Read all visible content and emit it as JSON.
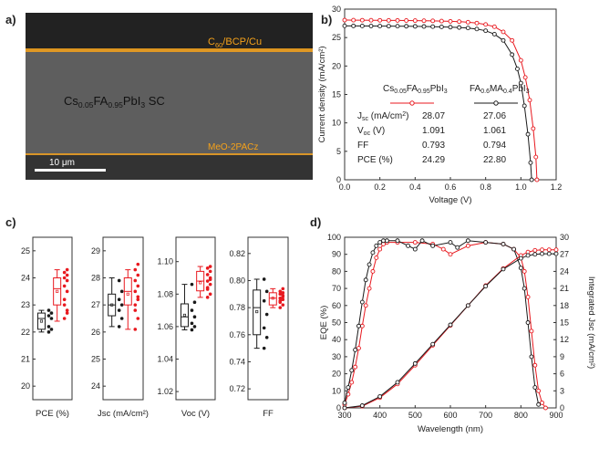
{
  "colors": {
    "red": "#e8191f",
    "black": "#1a1a1a",
    "orange": "#f6a21a",
    "sem_bg": "#5e5e5e",
    "sem_top": "#222222"
  },
  "panels": {
    "a": {
      "label": "a)",
      "top_layer": "C60/BCP/Cu",
      "top_layer_main": "C",
      "top_layer_sub": "60",
      "top_layer_rest": "/BCP/Cu",
      "film_main": "Cs",
      "film_sub1": "0.05",
      "film_mid": "FA",
      "film_sub2": "0.95",
      "film_rest": "PbI",
      "film_sub3": "3",
      "film_tail": " SC",
      "bottom_layer": "MeO-2PACz",
      "scale_bar": "10 μm"
    },
    "b": {
      "label": "b)"
    },
    "c": {
      "label": "c)"
    },
    "d": {
      "label": "d)"
    }
  },
  "chart_data": [
    {
      "id": "b",
      "type": "line",
      "xlabel": "Voltage (V)",
      "ylabel": "Current density (mA/cm²)",
      "xlim": [
        0.0,
        1.2
      ],
      "ylim": [
        0,
        30
      ],
      "xticks": [
        "0.0",
        "0.2",
        "0.4",
        "0.6",
        "0.8",
        "1.0",
        "1.2"
      ],
      "yticks": [
        "0",
        "5",
        "10",
        "15",
        "20",
        "25",
        "30"
      ],
      "series": [
        {
          "name": "Cs0.05FA0.95PbI3",
          "color": "#e8191f",
          "x": [
            0.0,
            0.05,
            0.1,
            0.15,
            0.2,
            0.25,
            0.3,
            0.35,
            0.4,
            0.45,
            0.5,
            0.55,
            0.6,
            0.65,
            0.7,
            0.75,
            0.8,
            0.85,
            0.9,
            0.95,
            1.0,
            1.025,
            1.05,
            1.07,
            1.085,
            1.091
          ],
          "y": [
            28.07,
            28.06,
            28.05,
            28.04,
            28.03,
            28.02,
            28.01,
            28.0,
            27.98,
            27.96,
            27.94,
            27.9,
            27.85,
            27.8,
            27.7,
            27.55,
            27.3,
            26.9,
            26.0,
            24.5,
            21.0,
            18.0,
            14.0,
            9.0,
            4.0,
            0.0
          ]
        },
        {
          "name": "FA0.6MA0.4PbI3",
          "color": "#1a1a1a",
          "x": [
            0.0,
            0.05,
            0.1,
            0.15,
            0.2,
            0.25,
            0.3,
            0.35,
            0.4,
            0.45,
            0.5,
            0.55,
            0.6,
            0.65,
            0.7,
            0.75,
            0.8,
            0.85,
            0.9,
            0.95,
            0.98,
            1.0,
            1.02,
            1.04,
            1.055,
            1.061
          ],
          "y": [
            27.06,
            27.05,
            27.04,
            27.03,
            27.02,
            27.01,
            27.0,
            26.99,
            26.97,
            26.95,
            26.92,
            26.88,
            26.83,
            26.77,
            26.68,
            26.5,
            26.2,
            25.6,
            24.5,
            22.0,
            19.5,
            17.0,
            13.0,
            8.0,
            3.0,
            0.0
          ]
        }
      ],
      "table": {
        "headers": [
          "",
          "Cs0.05FA0.95PbI3",
          "FA0.6MA0.4PbI3"
        ],
        "rows": [
          {
            "label": "Jsc (mA/cm²)",
            "a": "28.07",
            "b": "27.06"
          },
          {
            "label": "Voc (V)",
            "a": "1.091",
            "b": "1.061"
          },
          {
            "label": "FF",
            "a": "0.793",
            "b": "0.794"
          },
          {
            "label": "PCE (%)",
            "a": "24.29",
            "b": "22.80"
          }
        ]
      }
    },
    {
      "id": "c",
      "type": "box",
      "subplots": [
        {
          "xlabel": "PCE (%)",
          "ylim": [
            19.5,
            25.5
          ],
          "yticks": [
            "20",
            "21",
            "22",
            "23",
            "24",
            "25"
          ],
          "black": {
            "min": 22.0,
            "q1": 22.1,
            "median": 22.5,
            "q3": 22.7,
            "max": 22.8,
            "mean": 22.4,
            "points": [
              22.0,
              22.1,
              22.2,
              22.5,
              22.6,
              22.7,
              22.8
            ]
          },
          "red": {
            "min": 22.4,
            "q1": 23.0,
            "median": 23.6,
            "q3": 24.0,
            "max": 24.3,
            "mean": 23.5,
            "points": [
              22.5,
              22.8,
              23.2,
              23.5,
              23.7,
              23.9,
              24.0,
              24.1,
              24.2,
              24.3,
              23.0,
              22.7
            ]
          }
        },
        {
          "xlabel": "Jsc (mA/cm²)",
          "ylim": [
            23.5,
            29.5
          ],
          "yticks": [
            "24",
            "25",
            "26",
            "27",
            "28",
            "29"
          ],
          "black": {
            "min": 26.2,
            "q1": 26.6,
            "median": 27.0,
            "q3": 27.4,
            "max": 28.0,
            "mean": 27.0,
            "points": [
              26.2,
              26.5,
              26.8,
              27.0,
              27.2,
              27.5,
              27.9
            ]
          },
          "red": {
            "min": 26.1,
            "q1": 27.0,
            "median": 27.5,
            "q3": 28.0,
            "max": 28.3,
            "mean": 27.4,
            "points": [
              26.1,
              26.5,
              27.0,
              27.2,
              27.5,
              27.7,
              27.9,
              28.1,
              28.3,
              28.5,
              26.8,
              27.3
            ]
          }
        },
        {
          "xlabel": "Voc (V)",
          "ylim": [
            1.015,
            1.115
          ],
          "yticks": [
            "1.02",
            "1.04",
            "1.06",
            "1.08",
            "1.10"
          ],
          "black": {
            "min": 1.058,
            "q1": 1.06,
            "median": 1.066,
            "q3": 1.074,
            "max": 1.086,
            "mean": 1.067,
            "points": [
              1.058,
              1.06,
              1.062,
              1.066,
              1.07,
              1.075,
              1.086
            ]
          },
          "red": {
            "min": 1.078,
            "q1": 1.082,
            "median": 1.088,
            "q3": 1.094,
            "max": 1.097,
            "mean": 1.087,
            "points": [
              1.078,
              1.08,
              1.083,
              1.086,
              1.088,
              1.09,
              1.092,
              1.094,
              1.096,
              1.097,
              1.084,
              1.089
            ]
          }
        },
        {
          "xlabel": "FF",
          "ylim": [
            0.712,
            0.832
          ],
          "yticks": [
            "0.72",
            "0.74",
            "0.76",
            "0.78",
            "0.80",
            "0.82"
          ],
          "black": {
            "min": 0.75,
            "q1": 0.76,
            "median": 0.78,
            "q3": 0.793,
            "max": 0.801,
            "mean": 0.777,
            "points": [
              0.75,
              0.758,
              0.765,
              0.775,
              0.785,
              0.792,
              0.801
            ]
          },
          "red": {
            "min": 0.78,
            "q1": 0.782,
            "median": 0.787,
            "q3": 0.791,
            "max": 0.794,
            "mean": 0.787,
            "points": [
              0.78,
              0.782,
              0.784,
              0.786,
              0.787,
              0.788,
              0.79,
              0.791,
              0.792,
              0.794,
              0.785,
              0.789
            ]
          }
        }
      ]
    },
    {
      "id": "d",
      "type": "line",
      "xlabel": "Wavelength (nm)",
      "ylabel": "EQE (%)",
      "ylabel_right": "Integrated Jsc (mA/cm²)",
      "xlim": [
        300,
        900
      ],
      "ylim": [
        0,
        100
      ],
      "ylim_right": [
        0,
        30
      ],
      "xticks": [
        "300",
        "400",
        "500",
        "600",
        "700",
        "800",
        "900"
      ],
      "yticks": [
        "0",
        "10",
        "20",
        "30",
        "40",
        "50",
        "60",
        "70",
        "80",
        "90",
        "100"
      ],
      "yticks_right": [
        "0",
        "3",
        "6",
        "9",
        "12",
        "15",
        "18",
        "21",
        "24",
        "27",
        "30"
      ],
      "series": [
        {
          "name": "EQE red",
          "color": "#e8191f",
          "x": [
            300,
            310,
            320,
            330,
            340,
            350,
            360,
            370,
            380,
            390,
            400,
            410,
            420,
            450,
            500,
            550,
            580,
            600,
            650,
            700,
            750,
            780,
            800,
            810,
            820,
            830,
            840,
            850,
            860,
            870
          ],
          "y": [
            2,
            8,
            15,
            24,
            35,
            48,
            60,
            70,
            80,
            88,
            93,
            96,
            97,
            97,
            97,
            96,
            93,
            90,
            95,
            97,
            96,
            93,
            88,
            80,
            65,
            45,
            25,
            10,
            3,
            0
          ]
        },
        {
          "name": "EQE black",
          "color": "#1a1a1a",
          "x": [
            300,
            310,
            320,
            330,
            340,
            350,
            360,
            370,
            380,
            390,
            400,
            410,
            420,
            450,
            480,
            500,
            520,
            550,
            600,
            620,
            650,
            700,
            750,
            780,
            800,
            810,
            820,
            830,
            840,
            850
          ],
          "y": [
            3,
            12,
            22,
            34,
            48,
            62,
            75,
            84,
            91,
            95,
            97,
            98,
            98,
            98,
            95,
            93,
            98,
            95,
            97,
            94,
            98,
            97,
            96,
            93,
            82,
            70,
            50,
            30,
            12,
            2
          ]
        },
        {
          "name": "Integrated Jsc red",
          "color": "#e8191f",
          "axis": "right",
          "x": [
            300,
            350,
            400,
            450,
            500,
            550,
            600,
            650,
            700,
            750,
            800,
            820,
            840,
            860,
            880,
            900
          ],
          "y": [
            0,
            0.3,
            1.8,
            4.2,
            7.5,
            11.0,
            14.5,
            18.0,
            21.5,
            24.5,
            26.8,
            27.4,
            27.7,
            27.8,
            27.8,
            27.8
          ]
        },
        {
          "name": "Integrated Jsc black",
          "color": "#1a1a1a",
          "axis": "right",
          "x": [
            300,
            350,
            400,
            450,
            500,
            550,
            600,
            650,
            700,
            750,
            800,
            820,
            840,
            860,
            880,
            900
          ],
          "y": [
            0,
            0.4,
            2.0,
            4.5,
            7.8,
            11.2,
            14.6,
            18.0,
            21.4,
            24.4,
            26.3,
            26.8,
            27.0,
            27.1,
            27.1,
            27.1
          ]
        }
      ]
    }
  ]
}
